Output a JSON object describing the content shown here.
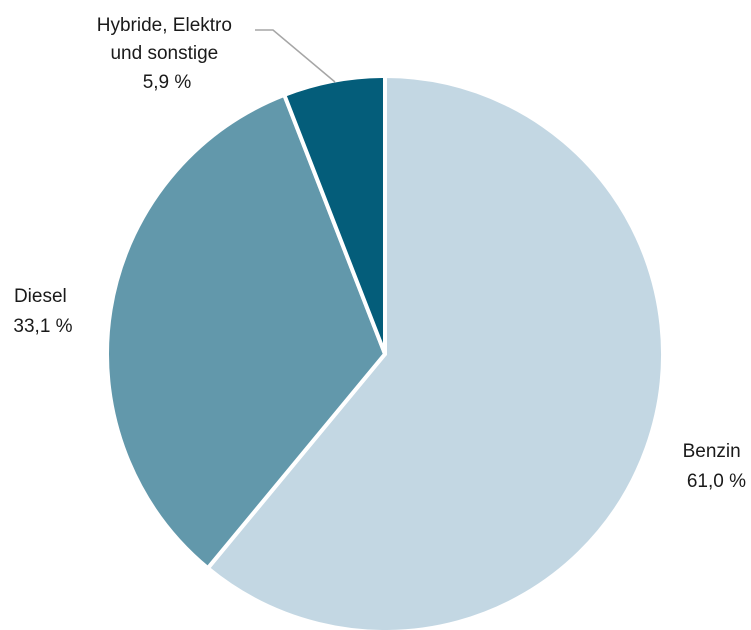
{
  "chart_data": {
    "type": "pie",
    "title": "",
    "slices": [
      {
        "name": "Benzin",
        "value": 61.0,
        "value_label": "61,0 %",
        "label_lines": [
          "Benzin"
        ],
        "color": "#c3d7e3"
      },
      {
        "name": "Diesel",
        "value": 33.1,
        "value_label": "33,1 %",
        "label_lines": [
          "Diesel"
        ],
        "color": "#6298ab"
      },
      {
        "name": "Hybride, Elektro und sonstige",
        "value": 5.9,
        "value_label": "5,9 %",
        "label_lines": [
          "Hybride, Elektro",
          "und sonstige"
        ],
        "color": "#045d7a"
      }
    ],
    "start_angle": "12 o'clock",
    "direction": "clockwise",
    "slice_border_color": "#ffffff",
    "leader_line_color": "#a6a6a6"
  }
}
